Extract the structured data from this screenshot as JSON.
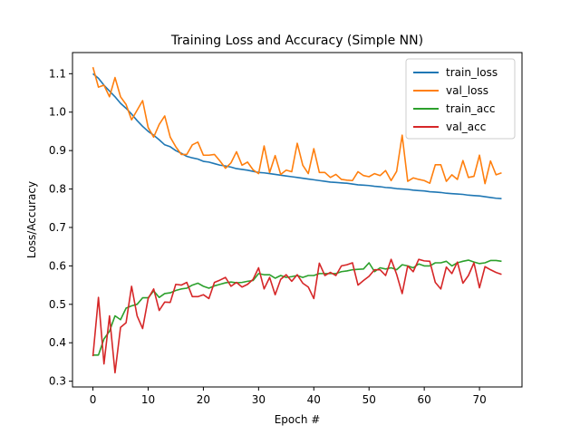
{
  "chart_data": {
    "type": "line",
    "title": "Training Loss and Accuracy (Simple NN)",
    "xlabel": "Epoch #",
    "ylabel": "Loss/Accuracy",
    "xlim": [
      -3.7,
      77.7
    ],
    "ylim": [
      0.285,
      1.155
    ],
    "xticks": [
      0,
      10,
      20,
      30,
      40,
      50,
      60,
      70
    ],
    "yticks": [
      0.3,
      0.4,
      0.5,
      0.6,
      0.7,
      0.8,
      0.9,
      1.0,
      1.1
    ],
    "ytick_labels": [
      "0.3",
      "0.4",
      "0.5",
      "0.6",
      "0.7",
      "0.8",
      "0.9",
      "1.0",
      "1.1"
    ],
    "grid": false,
    "legend": "top-right",
    "x": [
      0,
      1,
      2,
      3,
      4,
      5,
      6,
      7,
      8,
      9,
      10,
      11,
      12,
      13,
      14,
      15,
      16,
      17,
      18,
      19,
      20,
      21,
      22,
      23,
      24,
      25,
      26,
      27,
      28,
      29,
      30,
      31,
      32,
      33,
      34,
      35,
      36,
      37,
      38,
      39,
      40,
      41,
      42,
      43,
      44,
      45,
      46,
      47,
      48,
      49,
      50,
      51,
      52,
      53,
      54,
      55,
      56,
      57,
      58,
      59,
      60,
      61,
      62,
      63,
      64,
      65,
      66,
      67,
      68,
      69,
      70,
      71,
      72,
      73,
      74
    ],
    "series": [
      {
        "name": "train_loss",
        "color": "#1f77b4",
        "values": [
          1.1,
          1.088,
          1.07,
          1.055,
          1.04,
          1.023,
          1.01,
          0.995,
          0.978,
          0.963,
          0.95,
          0.94,
          0.928,
          0.915,
          0.91,
          0.9,
          0.893,
          0.885,
          0.881,
          0.878,
          0.872,
          0.87,
          0.866,
          0.862,
          0.86,
          0.857,
          0.853,
          0.851,
          0.849,
          0.846,
          0.843,
          0.842,
          0.84,
          0.838,
          0.836,
          0.834,
          0.832,
          0.83,
          0.828,
          0.826,
          0.824,
          0.822,
          0.82,
          0.818,
          0.817,
          0.816,
          0.815,
          0.813,
          0.811,
          0.81,
          0.809,
          0.807,
          0.806,
          0.804,
          0.803,
          0.801,
          0.8,
          0.799,
          0.797,
          0.796,
          0.795,
          0.793,
          0.792,
          0.791,
          0.789,
          0.788,
          0.787,
          0.786,
          0.784,
          0.783,
          0.782,
          0.78,
          0.778,
          0.776,
          0.775
        ]
      },
      {
        "name": "val_loss",
        "color": "#ff7f0e",
        "values": [
          1.117,
          1.065,
          1.07,
          1.04,
          1.09,
          1.04,
          1.02,
          0.98,
          1.005,
          1.03,
          0.96,
          0.935,
          0.968,
          0.99,
          0.935,
          0.91,
          0.89,
          0.89,
          0.915,
          0.922,
          0.888,
          0.888,
          0.89,
          0.873,
          0.854,
          0.868,
          0.897,
          0.862,
          0.87,
          0.85,
          0.84,
          0.912,
          0.843,
          0.887,
          0.838,
          0.849,
          0.845,
          0.919,
          0.862,
          0.84,
          0.905,
          0.843,
          0.843,
          0.83,
          0.838,
          0.825,
          0.823,
          0.822,
          0.845,
          0.835,
          0.832,
          0.84,
          0.835,
          0.848,
          0.822,
          0.846,
          0.94,
          0.82,
          0.829,
          0.825,
          0.822,
          0.815,
          0.863,
          0.863,
          0.82,
          0.837,
          0.825,
          0.874,
          0.83,
          0.833,
          0.888,
          0.814,
          0.873,
          0.837,
          0.842
        ]
      },
      {
        "name": "train_acc",
        "color": "#2ca02c",
        "values": [
          0.368,
          0.368,
          0.41,
          0.43,
          0.47,
          0.46,
          0.49,
          0.496,
          0.5,
          0.517,
          0.517,
          0.535,
          0.518,
          0.528,
          0.53,
          0.536,
          0.54,
          0.542,
          0.55,
          0.555,
          0.547,
          0.542,
          0.548,
          0.552,
          0.556,
          0.558,
          0.556,
          0.557,
          0.56,
          0.562,
          0.58,
          0.577,
          0.577,
          0.568,
          0.575,
          0.57,
          0.572,
          0.575,
          0.57,
          0.575,
          0.575,
          0.58,
          0.58,
          0.58,
          0.58,
          0.585,
          0.587,
          0.59,
          0.591,
          0.592,
          0.608,
          0.585,
          0.595,
          0.592,
          0.595,
          0.59,
          0.603,
          0.6,
          0.595,
          0.605,
          0.6,
          0.6,
          0.608,
          0.608,
          0.612,
          0.6,
          0.608,
          0.612,
          0.615,
          0.61,
          0.606,
          0.608,
          0.614,
          0.614,
          0.612
        ]
      },
      {
        "name": "val_acc",
        "color": "#d62728",
        "values": [
          0.365,
          0.518,
          0.345,
          0.47,
          0.322,
          0.44,
          0.452,
          0.547,
          0.47,
          0.437,
          0.515,
          0.54,
          0.484,
          0.506,
          0.505,
          0.552,
          0.55,
          0.557,
          0.52,
          0.52,
          0.525,
          0.515,
          0.557,
          0.563,
          0.57,
          0.547,
          0.557,
          0.545,
          0.552,
          0.565,
          0.595,
          0.54,
          0.57,
          0.525,
          0.565,
          0.577,
          0.56,
          0.577,
          0.555,
          0.545,
          0.515,
          0.607,
          0.575,
          0.583,
          0.575,
          0.6,
          0.603,
          0.608,
          0.55,
          0.562,
          0.573,
          0.59,
          0.59,
          0.575,
          0.617,
          0.578,
          0.528,
          0.6,
          0.585,
          0.617,
          0.613,
          0.612,
          0.557,
          0.54,
          0.597,
          0.58,
          0.61,
          0.555,
          0.575,
          0.608,
          0.543,
          0.598,
          0.59,
          0.583,
          0.578
        ]
      }
    ]
  }
}
